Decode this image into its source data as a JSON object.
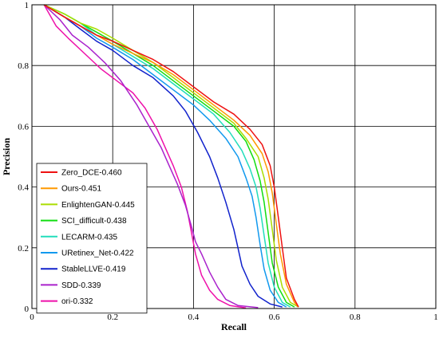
{
  "chart_data": {
    "type": "line",
    "title": "",
    "xlabel": "Recall",
    "ylabel": "Precision",
    "xlim": [
      0,
      1
    ],
    "ylim": [
      0,
      1
    ],
    "xticks": [
      0,
      0.2,
      0.4,
      0.6,
      0.8,
      1
    ],
    "yticks": [
      0,
      0.2,
      0.4,
      0.6,
      0.8,
      1
    ],
    "x_tick_labels": [
      "0",
      "0.2",
      "0.4",
      "0.6",
      "0.8",
      "1"
    ],
    "y_tick_labels": [
      "0",
      "0.2",
      "0.4",
      "0.6",
      "0.8",
      "1"
    ],
    "grid": true,
    "legend_position": "bottom-left",
    "series": [
      {
        "name": "Zero_DCE-0.460",
        "color": "#ee1111",
        "x": [
          0.03,
          0.08,
          0.12,
          0.16,
          0.2,
          0.25,
          0.3,
          0.35,
          0.4,
          0.45,
          0.5,
          0.54,
          0.57,
          0.59,
          0.6,
          0.61,
          0.62,
          0.63,
          0.65,
          0.66
        ],
        "y": [
          1.0,
          0.96,
          0.93,
          0.9,
          0.88,
          0.85,
          0.82,
          0.78,
          0.73,
          0.68,
          0.64,
          0.59,
          0.54,
          0.47,
          0.4,
          0.3,
          0.2,
          0.1,
          0.03,
          0.005
        ]
      },
      {
        "name": "Ours-0.451",
        "color": "#ff9900",
        "x": [
          0.03,
          0.08,
          0.12,
          0.16,
          0.2,
          0.25,
          0.3,
          0.35,
          0.4,
          0.45,
          0.5,
          0.54,
          0.57,
          0.585,
          0.595,
          0.605,
          0.615,
          0.63,
          0.65,
          0.66
        ],
        "y": [
          1.0,
          0.96,
          0.93,
          0.9,
          0.87,
          0.84,
          0.81,
          0.77,
          0.72,
          0.67,
          0.62,
          0.57,
          0.51,
          0.45,
          0.38,
          0.28,
          0.18,
          0.08,
          0.02,
          0.005
        ]
      },
      {
        "name": "EnlightenGAN-0.445",
        "color": "#aadd00",
        "x": [
          0.03,
          0.08,
          0.12,
          0.16,
          0.2,
          0.25,
          0.3,
          0.35,
          0.4,
          0.45,
          0.5,
          0.53,
          0.56,
          0.575,
          0.585,
          0.595,
          0.605,
          0.62,
          0.64,
          0.66
        ],
        "y": [
          1.0,
          0.97,
          0.94,
          0.92,
          0.89,
          0.85,
          0.81,
          0.76,
          0.71,
          0.66,
          0.61,
          0.56,
          0.5,
          0.43,
          0.36,
          0.26,
          0.16,
          0.07,
          0.02,
          0.005
        ]
      },
      {
        "name": "SCI_difficult-0.438",
        "color": "#11dd11",
        "x": [
          0.03,
          0.08,
          0.12,
          0.16,
          0.2,
          0.25,
          0.3,
          0.35,
          0.4,
          0.45,
          0.5,
          0.53,
          0.55,
          0.565,
          0.575,
          0.585,
          0.595,
          0.61,
          0.63,
          0.65
        ],
        "y": [
          1.0,
          0.97,
          0.94,
          0.91,
          0.88,
          0.84,
          0.8,
          0.75,
          0.7,
          0.65,
          0.6,
          0.55,
          0.49,
          0.42,
          0.35,
          0.25,
          0.15,
          0.07,
          0.02,
          0.005
        ]
      },
      {
        "name": "LECARM-0.435",
        "color": "#22ddbb",
        "x": [
          0.03,
          0.08,
          0.12,
          0.16,
          0.2,
          0.25,
          0.3,
          0.35,
          0.4,
          0.45,
          0.49,
          0.52,
          0.54,
          0.555,
          0.565,
          0.575,
          0.585,
          0.6,
          0.62,
          0.64
        ],
        "y": [
          1.0,
          0.97,
          0.94,
          0.9,
          0.87,
          0.83,
          0.79,
          0.74,
          0.69,
          0.64,
          0.58,
          0.52,
          0.46,
          0.4,
          0.33,
          0.24,
          0.15,
          0.07,
          0.02,
          0.005
        ]
      },
      {
        "name": "URetinex_Net-0.422",
        "color": "#1199ee",
        "x": [
          0.03,
          0.08,
          0.12,
          0.16,
          0.2,
          0.25,
          0.3,
          0.35,
          0.4,
          0.44,
          0.48,
          0.51,
          0.53,
          0.545,
          0.555,
          0.565,
          0.575,
          0.59,
          0.61,
          0.63
        ],
        "y": [
          1.0,
          0.96,
          0.93,
          0.89,
          0.86,
          0.82,
          0.77,
          0.72,
          0.67,
          0.62,
          0.56,
          0.5,
          0.43,
          0.37,
          0.3,
          0.21,
          0.13,
          0.06,
          0.02,
          0.005
        ]
      },
      {
        "name": "StableLLVE-0.419",
        "color": "#1122cc",
        "x": [
          0.03,
          0.08,
          0.12,
          0.16,
          0.2,
          0.25,
          0.3,
          0.35,
          0.38,
          0.41,
          0.44,
          0.46,
          0.48,
          0.5,
          0.51,
          0.52,
          0.54,
          0.56,
          0.59,
          0.62
        ],
        "y": [
          1.0,
          0.96,
          0.92,
          0.88,
          0.85,
          0.8,
          0.76,
          0.7,
          0.65,
          0.58,
          0.5,
          0.43,
          0.35,
          0.26,
          0.2,
          0.14,
          0.08,
          0.04,
          0.015,
          0.005
        ]
      },
      {
        "name": "SDD-0.339",
        "color": "#aa22cc",
        "x": [
          0.03,
          0.07,
          0.1,
          0.14,
          0.18,
          0.22,
          0.26,
          0.29,
          0.32,
          0.34,
          0.36,
          0.38,
          0.395,
          0.405,
          0.42,
          0.44,
          0.46,
          0.48,
          0.51,
          0.56
        ],
        "y": [
          1.0,
          0.95,
          0.9,
          0.86,
          0.81,
          0.75,
          0.67,
          0.6,
          0.53,
          0.47,
          0.41,
          0.34,
          0.27,
          0.22,
          0.18,
          0.12,
          0.07,
          0.03,
          0.01,
          0.003
        ]
      },
      {
        "name": "ori-0.332",
        "color": "#ee11aa",
        "x": [
          0.03,
          0.06,
          0.09,
          0.13,
          0.17,
          0.21,
          0.25,
          0.28,
          0.31,
          0.33,
          0.35,
          0.37,
          0.385,
          0.395,
          0.405,
          0.42,
          0.44,
          0.46,
          0.49,
          0.53
        ],
        "y": [
          1.0,
          0.93,
          0.89,
          0.84,
          0.79,
          0.75,
          0.71,
          0.66,
          0.59,
          0.53,
          0.47,
          0.4,
          0.32,
          0.25,
          0.18,
          0.11,
          0.06,
          0.03,
          0.01,
          0.002
        ]
      }
    ]
  }
}
